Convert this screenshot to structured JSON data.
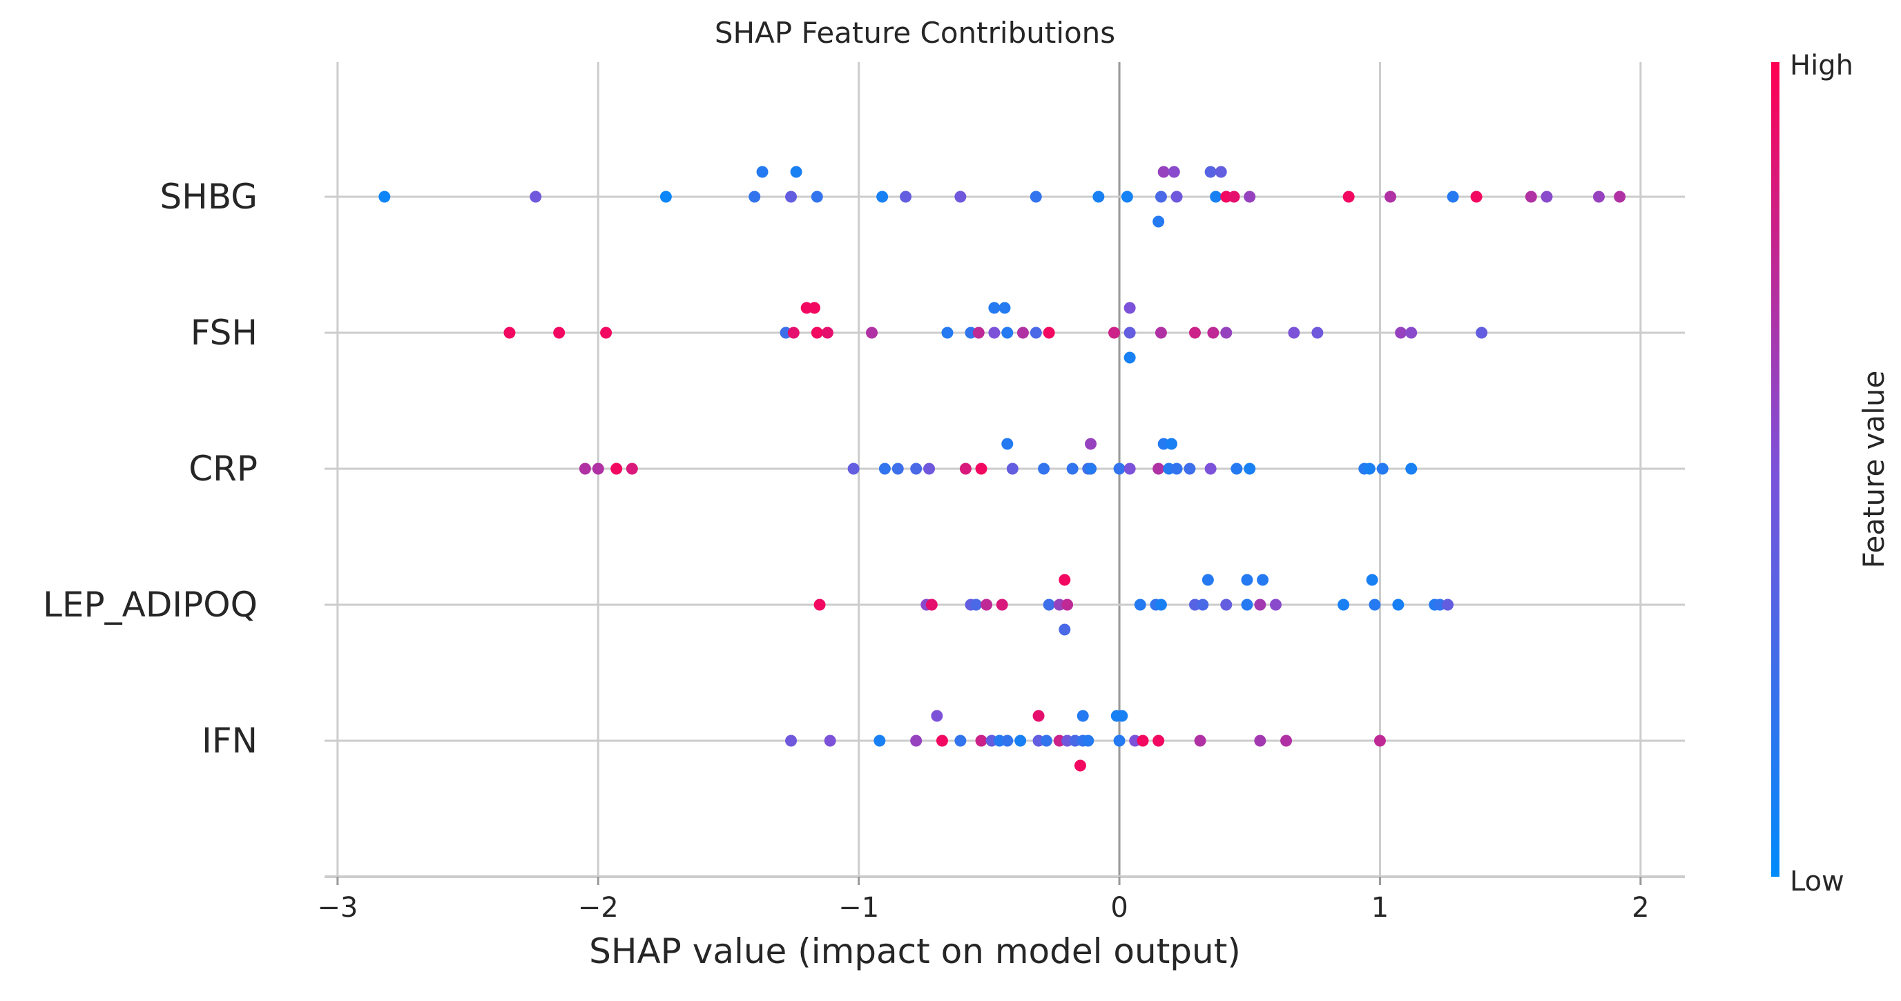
{
  "chart_data": {
    "type": "scatter",
    "title": "SHAP Feature Contributions",
    "xlabel": "SHAP value (impact on model output)",
    "xlim": [
      -3.05,
      2.17
    ],
    "xticks": [
      -3,
      -2,
      -1,
      0,
      1,
      2
    ],
    "xtick_labels": [
      "−3",
      "−2",
      "−1",
      "0",
      "1",
      "2"
    ],
    "grid": true,
    "features": [
      "SHBG",
      "FSH",
      "CRP",
      "LEP_ADIPOQ",
      "IFN"
    ],
    "colorbar": {
      "title": "Feature value",
      "high_label": "High",
      "low_label": "Low",
      "low_color": "#008bfb",
      "mid_color": "#7c52d9",
      "high_color": "#ff0052"
    },
    "series": [
      {
        "name": "SHBG",
        "points": [
          {
            "x": -2.82,
            "v": 0.05,
            "j": 0
          },
          {
            "x": -2.24,
            "v": 0.45,
            "j": 0
          },
          {
            "x": -1.74,
            "v": 0.05,
            "j": 0
          },
          {
            "x": -1.37,
            "v": 0.15,
            "j": 1
          },
          {
            "x": -1.24,
            "v": 0.1,
            "j": 1
          },
          {
            "x": -1.4,
            "v": 0.2,
            "j": 0
          },
          {
            "x": -1.26,
            "v": 0.4,
            "j": 0
          },
          {
            "x": -1.16,
            "v": 0.2,
            "j": 0
          },
          {
            "x": -0.91,
            "v": 0.1,
            "j": 0
          },
          {
            "x": -0.82,
            "v": 0.4,
            "j": 0
          },
          {
            "x": -0.61,
            "v": 0.45,
            "j": 0
          },
          {
            "x": -0.32,
            "v": 0.2,
            "j": 0
          },
          {
            "x": -0.08,
            "v": 0.1,
            "j": 0
          },
          {
            "x": 0.03,
            "v": 0.08,
            "j": 0
          },
          {
            "x": 0.16,
            "v": 0.3,
            "j": 0
          },
          {
            "x": 0.17,
            "v": 0.6,
            "j": 1
          },
          {
            "x": 0.21,
            "v": 0.55,
            "j": 1
          },
          {
            "x": 0.15,
            "v": 0.15,
            "j": -1
          },
          {
            "x": 0.22,
            "v": 0.45,
            "j": 0
          },
          {
            "x": 0.35,
            "v": 0.35,
            "j": 1
          },
          {
            "x": 0.39,
            "v": 0.4,
            "j": 1
          },
          {
            "x": 0.37,
            "v": 0.1,
            "j": 0
          },
          {
            "x": 0.41,
            "v": 0.95,
            "j": 0
          },
          {
            "x": 0.44,
            "v": 0.9,
            "j": 0
          },
          {
            "x": 0.5,
            "v": 0.6,
            "j": 0
          },
          {
            "x": 0.88,
            "v": 0.95,
            "j": 0
          },
          {
            "x": 1.04,
            "v": 0.7,
            "j": 0
          },
          {
            "x": 1.28,
            "v": 0.15,
            "j": 0
          },
          {
            "x": 1.37,
            "v": 0.95,
            "j": 0
          },
          {
            "x": 1.58,
            "v": 0.7,
            "j": 0
          },
          {
            "x": 1.64,
            "v": 0.55,
            "j": 0
          },
          {
            "x": 1.84,
            "v": 0.6,
            "j": 0
          },
          {
            "x": 1.92,
            "v": 0.7,
            "j": 0
          }
        ]
      },
      {
        "name": "FSH",
        "points": [
          {
            "x": -2.34,
            "v": 0.95,
            "j": 0
          },
          {
            "x": -2.15,
            "v": 0.95,
            "j": 0
          },
          {
            "x": -1.97,
            "v": 0.95,
            "j": 0
          },
          {
            "x": -1.2,
            "v": 0.95,
            "j": 1
          },
          {
            "x": -1.17,
            "v": 0.95,
            "j": 1
          },
          {
            "x": -1.28,
            "v": 0.25,
            "j": 0
          },
          {
            "x": -1.25,
            "v": 0.9,
            "j": 0
          },
          {
            "x": -1.16,
            "v": 0.95,
            "j": 0
          },
          {
            "x": -1.12,
            "v": 0.9,
            "j": 0
          },
          {
            "x": -0.95,
            "v": 0.7,
            "j": 0
          },
          {
            "x": -0.66,
            "v": 0.15,
            "j": 0
          },
          {
            "x": -0.57,
            "v": 0.2,
            "j": 0
          },
          {
            "x": -0.54,
            "v": 0.75,
            "j": 0
          },
          {
            "x": -0.48,
            "v": 0.5,
            "j": 0
          },
          {
            "x": -0.48,
            "v": 0.15,
            "j": 1
          },
          {
            "x": -0.44,
            "v": 0.15,
            "j": 1
          },
          {
            "x": -0.43,
            "v": 0.15,
            "j": 0
          },
          {
            "x": -0.37,
            "v": 0.7,
            "j": 0
          },
          {
            "x": -0.32,
            "v": 0.3,
            "j": 0
          },
          {
            "x": -0.27,
            "v": 0.95,
            "j": 0
          },
          {
            "x": -0.02,
            "v": 0.8,
            "j": 0
          },
          {
            "x": 0.04,
            "v": 0.5,
            "j": 1
          },
          {
            "x": 0.04,
            "v": 0.4,
            "j": 0
          },
          {
            "x": 0.04,
            "v": 0.1,
            "j": -1
          },
          {
            "x": 0.16,
            "v": 0.7,
            "j": 0
          },
          {
            "x": 0.29,
            "v": 0.8,
            "j": 0
          },
          {
            "x": 0.36,
            "v": 0.75,
            "j": 0
          },
          {
            "x": 0.41,
            "v": 0.6,
            "j": 0
          },
          {
            "x": 0.67,
            "v": 0.5,
            "j": 0
          },
          {
            "x": 0.76,
            "v": 0.45,
            "j": 0
          },
          {
            "x": 1.08,
            "v": 0.6,
            "j": 0
          },
          {
            "x": 1.12,
            "v": 0.55,
            "j": 0
          },
          {
            "x": 1.39,
            "v": 0.4,
            "j": 0
          }
        ]
      },
      {
        "name": "CRP",
        "points": [
          {
            "x": -2.05,
            "v": 0.7,
            "j": 0
          },
          {
            "x": -2.0,
            "v": 0.7,
            "j": 0
          },
          {
            "x": -1.93,
            "v": 0.95,
            "j": 0
          },
          {
            "x": -1.87,
            "v": 0.85,
            "j": 0
          },
          {
            "x": -1.02,
            "v": 0.4,
            "j": 0
          },
          {
            "x": -0.9,
            "v": 0.2,
            "j": 0
          },
          {
            "x": -0.85,
            "v": 0.25,
            "j": 0
          },
          {
            "x": -0.78,
            "v": 0.3,
            "j": 0
          },
          {
            "x": -0.73,
            "v": 0.45,
            "j": 0
          },
          {
            "x": -0.59,
            "v": 0.85,
            "j": 0
          },
          {
            "x": -0.53,
            "v": 0.95,
            "j": 0
          },
          {
            "x": -0.43,
            "v": 0.15,
            "j": 1
          },
          {
            "x": -0.41,
            "v": 0.4,
            "j": 0
          },
          {
            "x": -0.29,
            "v": 0.2,
            "j": 0
          },
          {
            "x": -0.18,
            "v": 0.2,
            "j": 0
          },
          {
            "x": -0.11,
            "v": 0.6,
            "j": 1
          },
          {
            "x": -0.12,
            "v": 0.25,
            "j": 0
          },
          {
            "x": -0.11,
            "v": 0.95,
            "j": 0
          },
          {
            "x": -0.11,
            "v": 0.15,
            "j": 0
          },
          {
            "x": 0.0,
            "v": 0.2,
            "j": 0
          },
          {
            "x": 0.04,
            "v": 0.5,
            "j": 0
          },
          {
            "x": 0.15,
            "v": 0.7,
            "j": 0
          },
          {
            "x": 0.17,
            "v": 0.15,
            "j": 1
          },
          {
            "x": 0.2,
            "v": 0.1,
            "j": 1
          },
          {
            "x": 0.19,
            "v": 0.15,
            "j": 0
          },
          {
            "x": 0.22,
            "v": 0.2,
            "j": 0
          },
          {
            "x": 0.27,
            "v": 0.25,
            "j": 0
          },
          {
            "x": 0.35,
            "v": 0.5,
            "j": 0
          },
          {
            "x": 0.45,
            "v": 0.15,
            "j": 0
          },
          {
            "x": 0.5,
            "v": 0.1,
            "j": 0
          },
          {
            "x": 0.94,
            "v": 0.15,
            "j": 0
          },
          {
            "x": 0.96,
            "v": 0.1,
            "j": 0
          },
          {
            "x": 1.01,
            "v": 0.15,
            "j": 0
          },
          {
            "x": 1.12,
            "v": 0.1,
            "j": 0
          }
        ]
      },
      {
        "name": "LEP_ADIPOQ",
        "points": [
          {
            "x": -1.15,
            "v": 0.95,
            "j": 0
          },
          {
            "x": -0.74,
            "v": 0.55,
            "j": 0
          },
          {
            "x": -0.72,
            "v": 0.9,
            "j": 0
          },
          {
            "x": -0.57,
            "v": 0.4,
            "j": 0
          },
          {
            "x": -0.55,
            "v": 0.3,
            "j": 0
          },
          {
            "x": -0.51,
            "v": 0.75,
            "j": 0
          },
          {
            "x": -0.45,
            "v": 0.85,
            "j": 0
          },
          {
            "x": -0.27,
            "v": 0.25,
            "j": 0
          },
          {
            "x": -0.23,
            "v": 0.6,
            "j": 0
          },
          {
            "x": -0.21,
            "v": 0.95,
            "j": 1
          },
          {
            "x": -0.2,
            "v": 0.75,
            "j": 0
          },
          {
            "x": -0.21,
            "v": 0.3,
            "j": -1
          },
          {
            "x": 0.08,
            "v": 0.15,
            "j": 0
          },
          {
            "x": 0.14,
            "v": 0.2,
            "j": 0
          },
          {
            "x": 0.16,
            "v": 0.1,
            "j": 0
          },
          {
            "x": 0.29,
            "v": 0.35,
            "j": 0
          },
          {
            "x": 0.32,
            "v": 0.3,
            "j": 0
          },
          {
            "x": 0.34,
            "v": 0.15,
            "j": 1
          },
          {
            "x": 0.41,
            "v": 0.4,
            "j": 0
          },
          {
            "x": 0.49,
            "v": 0.15,
            "j": 0
          },
          {
            "x": 0.49,
            "v": 0.15,
            "j": 1
          },
          {
            "x": 0.54,
            "v": 0.65,
            "j": 0
          },
          {
            "x": 0.55,
            "v": 0.15,
            "j": 1
          },
          {
            "x": 0.6,
            "v": 0.55,
            "j": 0
          },
          {
            "x": 0.86,
            "v": 0.1,
            "j": 0
          },
          {
            "x": 0.97,
            "v": 0.1,
            "j": 1
          },
          {
            "x": 0.98,
            "v": 0.15,
            "j": 0
          },
          {
            "x": 1.07,
            "v": 0.1,
            "j": 0
          },
          {
            "x": 1.21,
            "v": 0.15,
            "j": 0
          },
          {
            "x": 1.23,
            "v": 0.2,
            "j": 0
          },
          {
            "x": 1.26,
            "v": 0.4,
            "j": 0
          }
        ]
      },
      {
        "name": "IFN",
        "points": [
          {
            "x": -1.26,
            "v": 0.45,
            "j": 0
          },
          {
            "x": -1.11,
            "v": 0.5,
            "j": 0
          },
          {
            "x": -0.92,
            "v": 0.1,
            "j": 0
          },
          {
            "x": -0.78,
            "v": 0.6,
            "j": 0
          },
          {
            "x": -0.7,
            "v": 0.5,
            "j": 1
          },
          {
            "x": -0.68,
            "v": 0.95,
            "j": 0
          },
          {
            "x": -0.61,
            "v": 0.2,
            "j": 0
          },
          {
            "x": -0.53,
            "v": 0.8,
            "j": 0
          },
          {
            "x": -0.49,
            "v": 0.4,
            "j": 0
          },
          {
            "x": -0.46,
            "v": 0.15,
            "j": 0
          },
          {
            "x": -0.43,
            "v": 0.2,
            "j": 0
          },
          {
            "x": -0.38,
            "v": 0.1,
            "j": 0
          },
          {
            "x": -0.31,
            "v": 0.9,
            "j": 1
          },
          {
            "x": -0.31,
            "v": 0.4,
            "j": 0
          },
          {
            "x": -0.28,
            "v": 0.2,
            "j": 0
          },
          {
            "x": -0.23,
            "v": 0.8,
            "j": 0
          },
          {
            "x": -0.2,
            "v": 0.45,
            "j": 0
          },
          {
            "x": -0.17,
            "v": 0.3,
            "j": 0
          },
          {
            "x": -0.14,
            "v": 0.15,
            "j": 1
          },
          {
            "x": -0.15,
            "v": 0.95,
            "j": -1
          },
          {
            "x": -0.14,
            "v": 0.2,
            "j": 0
          },
          {
            "x": -0.12,
            "v": 0.15,
            "j": 0
          },
          {
            "x": -0.01,
            "v": 0.1,
            "j": 1
          },
          {
            "x": 0.01,
            "v": 0.1,
            "j": 1
          },
          {
            "x": 0.0,
            "v": 0.15,
            "j": 0
          },
          {
            "x": 0.06,
            "v": 0.5,
            "j": 0
          },
          {
            "x": 0.09,
            "v": 0.95,
            "j": 0
          },
          {
            "x": 0.15,
            "v": 0.95,
            "j": 0
          },
          {
            "x": 0.31,
            "v": 0.7,
            "j": 0
          },
          {
            "x": 0.54,
            "v": 0.65,
            "j": 0
          },
          {
            "x": 0.64,
            "v": 0.7,
            "j": 0
          },
          {
            "x": 1.0,
            "v": 0.75,
            "j": 0
          }
        ]
      }
    ]
  }
}
